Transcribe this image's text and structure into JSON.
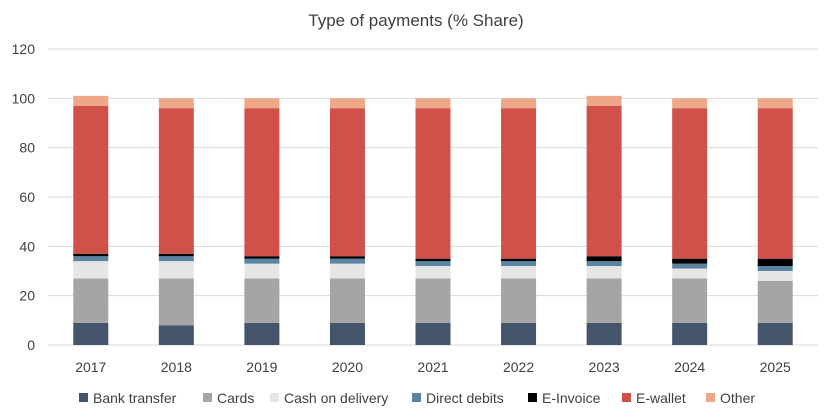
{
  "chart_data": {
    "type": "bar",
    "stacked": true,
    "title": "Type of payments (% Share)",
    "xlabel": "",
    "ylabel": "",
    "ylim": [
      0,
      120
    ],
    "yticks": [
      0,
      20,
      40,
      60,
      80,
      100,
      120
    ],
    "grid": true,
    "legend_position": "bottom",
    "categories": [
      "2017",
      "2018",
      "2019",
      "2020",
      "2021",
      "2022",
      "2023",
      "2024",
      "2025"
    ],
    "series": [
      {
        "name": "Bank transfer",
        "color": "#44546a",
        "values": [
          9,
          8,
          9,
          9,
          9,
          9,
          9,
          9,
          9
        ]
      },
      {
        "name": "Cards",
        "color": "#a5a5a5",
        "values": [
          18,
          19,
          18,
          18,
          18,
          18,
          18,
          18,
          17
        ]
      },
      {
        "name": "Cash on delivery",
        "color": "#e7e6e6",
        "values": [
          7,
          7,
          6,
          6,
          5,
          5,
          5,
          4,
          4
        ]
      },
      {
        "name": "Direct debits",
        "color": "#5b84a2",
        "values": [
          2,
          2,
          2,
          2,
          2,
          2,
          2,
          2,
          2
        ]
      },
      {
        "name": "E-Invoice",
        "color": "#000000",
        "values": [
          1,
          1,
          1,
          1,
          1,
          1,
          2,
          2,
          3
        ]
      },
      {
        "name": "E-wallet",
        "color": "#d0504a",
        "values": [
          60,
          59,
          60,
          60,
          61,
          61,
          61,
          61,
          61
        ]
      },
      {
        "name": "Other",
        "color": "#eea787",
        "values": [
          4,
          4,
          4,
          4,
          4,
          4,
          4,
          4,
          4
        ]
      }
    ]
  }
}
